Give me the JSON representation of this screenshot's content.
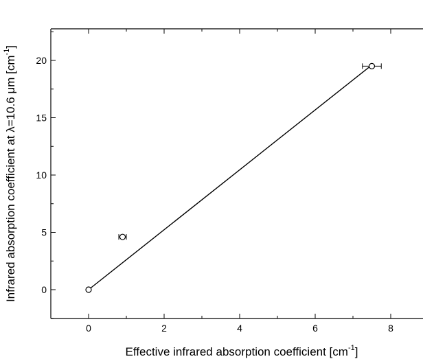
{
  "chart_data": {
    "type": "scatter",
    "title": "",
    "xlabel_main": "Effective infrared absorption coefficient [cm",
    "xlabel_sup": "-1",
    "xlabel_end": "]",
    "ylabel_main": "Infrared absorption coefficient at λ=10.6 μm [cm",
    "ylabel_sup": "-1",
    "ylabel_end": "]",
    "xlim": [
      -1,
      9
    ],
    "ylim": [
      -2.5,
      22.5
    ],
    "x_ticks": [
      0,
      2,
      4,
      6,
      8
    ],
    "y_ticks": [
      0,
      5,
      10,
      15,
      20
    ],
    "x_tick_labels": [
      "0",
      "2",
      "4",
      "6",
      "8"
    ],
    "y_tick_labels": [
      "0",
      "5",
      "10",
      "15",
      "20"
    ],
    "grid": false,
    "series": [
      {
        "marker": "open-circle",
        "points": [
          {
            "x": 0.0,
            "y": 0.0,
            "xerr": 0.0
          },
          {
            "x": 0.9,
            "y": 4.6,
            "xerr": 0.1
          },
          {
            "x": 7.5,
            "y": 19.5,
            "xerr": 0.25
          }
        ]
      }
    ],
    "fit_line": {
      "x": [
        0,
        7.5
      ],
      "y": [
        0,
        19.6
      ]
    }
  }
}
